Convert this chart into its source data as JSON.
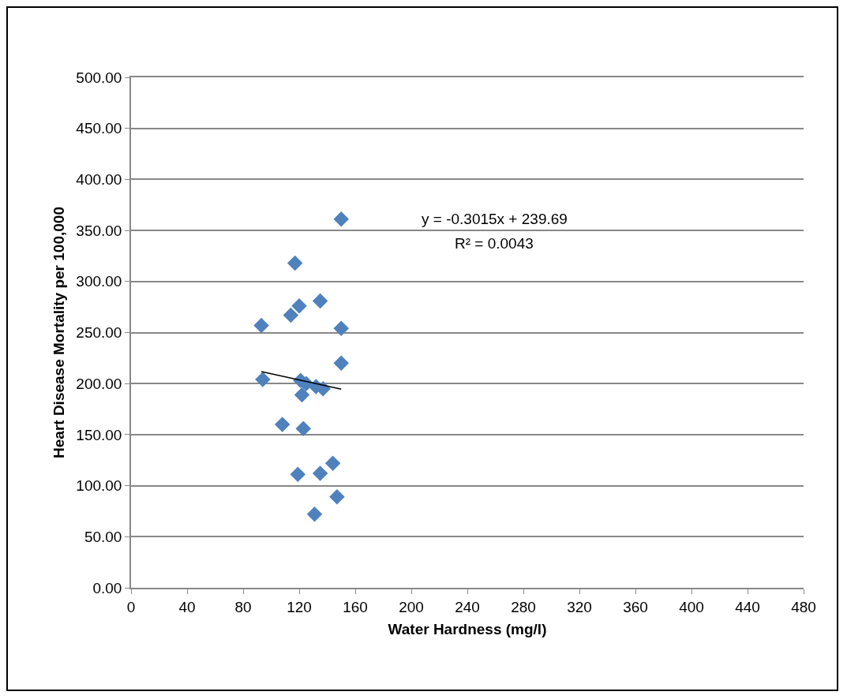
{
  "chart_data": {
    "type": "scatter",
    "xlabel": "Water Hardness (mg/l)",
    "ylabel": "Heart Disease Mortality per 100,000",
    "xlim": [
      0,
      480
    ],
    "xticks": [
      0,
      40,
      80,
      120,
      160,
      200,
      240,
      280,
      320,
      360,
      400,
      440,
      480
    ],
    "ylim": [
      0,
      500
    ],
    "yticks": [
      {
        "value": 0,
        "label": "0.00"
      },
      {
        "value": 50,
        "label": "50.00"
      },
      {
        "value": 100,
        "label": "100.00"
      },
      {
        "value": 150,
        "label": "150.00"
      },
      {
        "value": 200,
        "label": "200.00"
      },
      {
        "value": 250,
        "label": "250.00"
      },
      {
        "value": 300,
        "label": "300.00"
      },
      {
        "value": 350,
        "label": "350.00"
      },
      {
        "value": 400,
        "label": "400.00"
      },
      {
        "value": 450,
        "label": "450.00"
      },
      {
        "value": 500,
        "label": "500.00"
      }
    ],
    "grid": "y",
    "marker": "diamond",
    "annotations": [
      "y = -0.3015x + 239.69",
      "R² = 0.0043"
    ],
    "series": [
      {
        "color": "#4f81bd",
        "x": [
          150,
          117,
          120,
          114,
          135,
          93,
          150,
          150,
          94,
          121,
          125,
          132,
          137,
          122,
          108,
          123,
          119,
          135,
          144,
          147,
          131
        ],
        "values": [
          361,
          318,
          276,
          267,
          281,
          257,
          254,
          220,
          204,
          203,
          200,
          197,
          195,
          189,
          160,
          156,
          111,
          112,
          122,
          89,
          72
        ]
      },
      {
        "type": "line",
        "color": "#000000",
        "marker": "none",
        "x": [
          93,
          150
        ],
        "values": [
          211.7,
          194.5
        ]
      }
    ]
  }
}
